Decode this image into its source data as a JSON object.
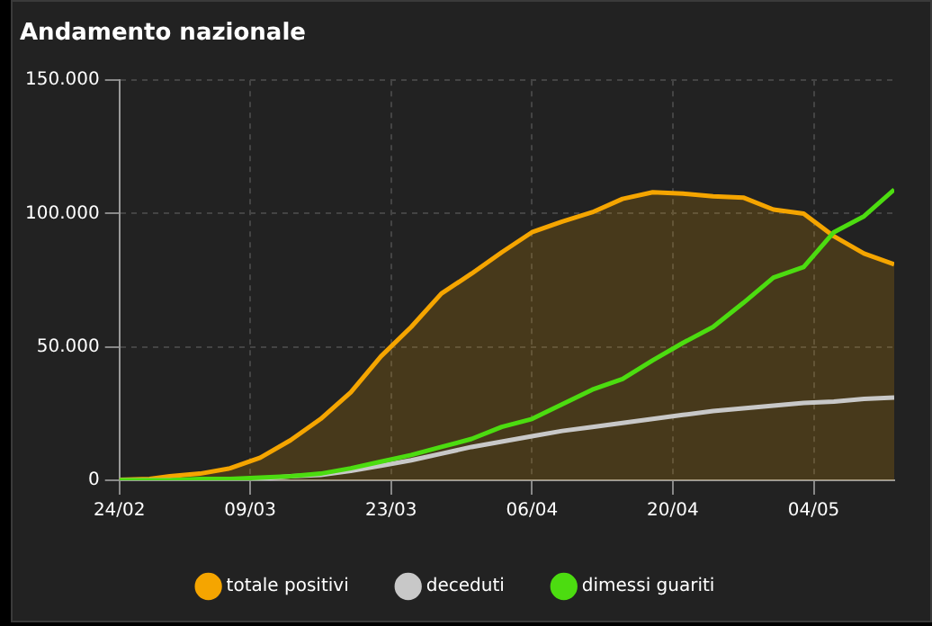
{
  "chart_data": {
    "type": "line",
    "title": "Andamento nazionale",
    "x": [
      "--02-24",
      "--02-27",
      "--03-01",
      "--03-04",
      "--03-07",
      "--03-10",
      "--03-13",
      "--03-16",
      "--03-19",
      "--03-22",
      "--03-25",
      "--03-28",
      "--03-31",
      "--04-03",
      "--04-06",
      "--04-09",
      "--04-12",
      "--04-15",
      "--04-18",
      "--04-21",
      "--04-24",
      "--04-27",
      "--04-30",
      "--05-03",
      "--05-06",
      "--05-09",
      "--05-12"
    ],
    "series": [
      {
        "name": "totale positivi",
        "type": "area",
        "color": "#f5a500",
        "values": [
          200,
          500,
          1500,
          2500,
          4500,
          8500,
          15000,
          23000,
          33000,
          46500,
          57500,
          70000,
          77500,
          85500,
          93000,
          97000,
          100500,
          105500,
          108000,
          107500,
          106500,
          106000,
          101500,
          100000,
          91500,
          85000,
          81000
        ]
      },
      {
        "name": "deceduti",
        "type": "line",
        "color": "#c8c8c8",
        "values": [
          0,
          0,
          0,
          0,
          0,
          500,
          1500,
          2000,
          3500,
          5500,
          7500,
          10000,
          12500,
          14500,
          16500,
          18500,
          20000,
          21500,
          23000,
          24500,
          26000,
          27000,
          28000,
          29000,
          29500,
          30500,
          31000
        ]
      },
      {
        "name": "dimessi guariti",
        "type": "line",
        "color": "#4cdc10",
        "values": [
          0,
          0,
          0,
          500,
          500,
          1000,
          1500,
          2500,
          4500,
          7000,
          9500,
          12500,
          15500,
          20000,
          23000,
          28500,
          34000,
          38000,
          45000,
          51500,
          57500,
          66500,
          76000,
          80000,
          93000,
          99000,
          109000
        ]
      }
    ],
    "xlim": [
      "--02-24",
      "--05-12"
    ],
    "xticks": [
      {
        "value": "--02-24",
        "label": "24/02"
      },
      {
        "value": "--03-09",
        "label": "09/03"
      },
      {
        "value": "--03-23",
        "label": "23/03"
      },
      {
        "value": "--04-06",
        "label": "06/04"
      },
      {
        "value": "--04-20",
        "label": "20/04"
      },
      {
        "value": "--05-04",
        "label": "04/05"
      }
    ],
    "ylim": [
      0,
      150000
    ],
    "yticks": [
      0,
      {
        "value": 50000,
        "label": "50.000"
      },
      {
        "value": 100000,
        "label": "100.000"
      },
      {
        "value": 150000,
        "label": "150.000"
      }
    ],
    "grid": true,
    "legend": "bottom",
    "marker": "none",
    "line_style": "solid"
  }
}
